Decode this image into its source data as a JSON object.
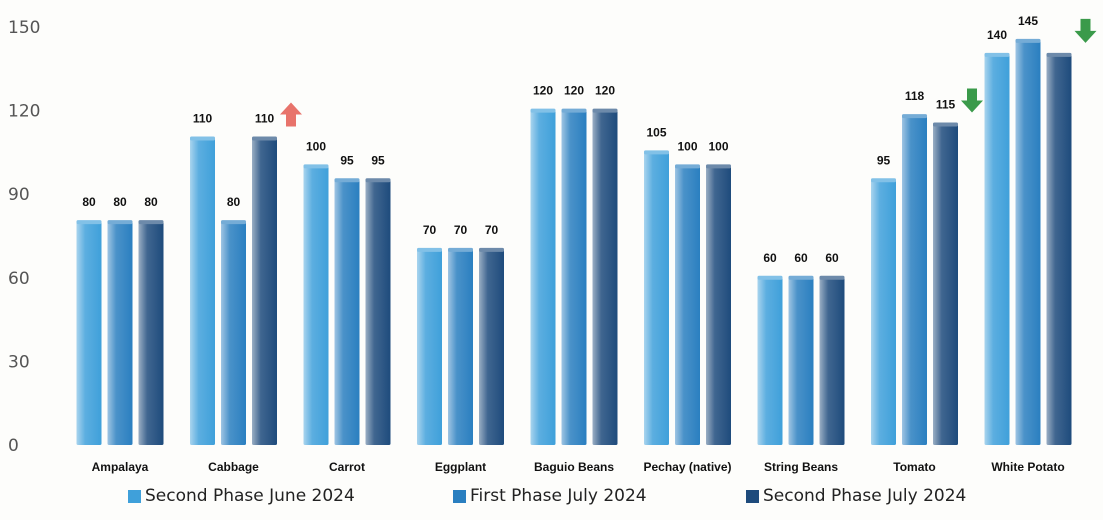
{
  "chart_data": {
    "type": "bar",
    "title": "",
    "xlabel": "",
    "ylabel": "",
    "ylim": [
      0,
      150
    ],
    "yticks": [
      0,
      30,
      60,
      90,
      120,
      150
    ],
    "grid": false,
    "legend_position": "bottom",
    "categories": [
      "Ampalaya",
      "Cabbage",
      "Carrot",
      "Eggplant",
      "Baguio Beans",
      "Pechay (native)",
      "String Beans",
      "Tomato",
      "White Potato"
    ],
    "series": [
      {
        "name": "Second Phase June 2024",
        "values": [
          80,
          110,
          100,
          70,
          120,
          105,
          60,
          95,
          140
        ],
        "color": "#3fa0da"
      },
      {
        "name": "First Phase July 2024",
        "values": [
          80,
          80,
          95,
          70,
          120,
          100,
          60,
          118,
          145
        ],
        "color": "#2a7fc0"
      },
      {
        "name": "Second Phase July 2024",
        "values": [
          80,
          110,
          95,
          70,
          120,
          100,
          60,
          115,
          140
        ],
        "color": "#1e4b7c"
      }
    ],
    "data_labels": [
      [
        "80",
        "110",
        "100",
        "70",
        "120",
        "105",
        "60",
        "95",
        "140"
      ],
      [
        "80",
        "80",
        "95",
        "70",
        "120",
        "100",
        "60",
        "118",
        "145"
      ],
      [
        "80",
        "110",
        "95",
        "70",
        "120",
        "100",
        "60",
        "115",
        ""
      ]
    ],
    "annotations": [
      {
        "category": "Cabbage",
        "icon": "arrow-up-icon",
        "color": "#e8736b"
      },
      {
        "category": "Tomato",
        "icon": "arrow-down-icon",
        "color": "#3a9a4a"
      },
      {
        "category": "White Potato",
        "icon": "arrow-down-icon",
        "color": "#3a9a4a"
      }
    ]
  }
}
